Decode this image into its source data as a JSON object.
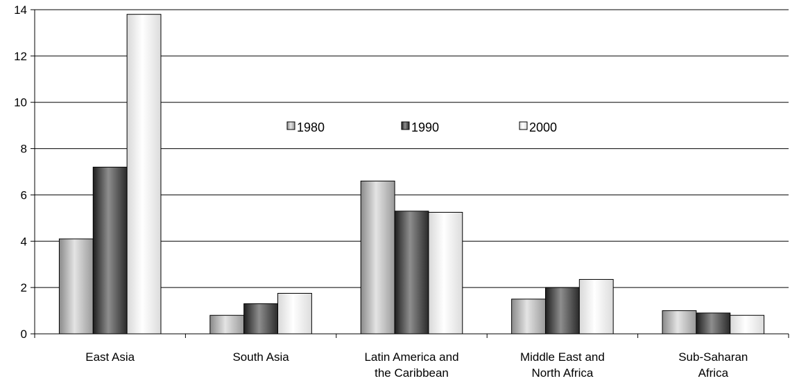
{
  "chart_data": {
    "type": "bar",
    "title": "",
    "xlabel": "",
    "ylabel": "",
    "ylim": [
      0,
      14
    ],
    "yticks": [
      0,
      2,
      4,
      6,
      8,
      10,
      12,
      14
    ],
    "grid": true,
    "legend_position": "center",
    "categories": [
      [
        "East Asia"
      ],
      [
        "South Asia"
      ],
      [
        "Latin America and",
        "the Caribbean"
      ],
      [
        "Middle East and",
        "North Africa"
      ],
      [
        "Sub-Saharan",
        "Africa"
      ]
    ],
    "series": [
      {
        "name": "1980",
        "values": [
          4.1,
          0.8,
          6.6,
          1.5,
          1.0
        ],
        "color": "#b8b8b8"
      },
      {
        "name": "1990",
        "values": [
          7.2,
          1.3,
          5.3,
          2.0,
          0.9
        ],
        "color": "#555555"
      },
      {
        "name": "2000",
        "values": [
          13.8,
          1.75,
          5.25,
          2.35,
          0.8
        ],
        "color": "#f2f2f2"
      }
    ]
  }
}
